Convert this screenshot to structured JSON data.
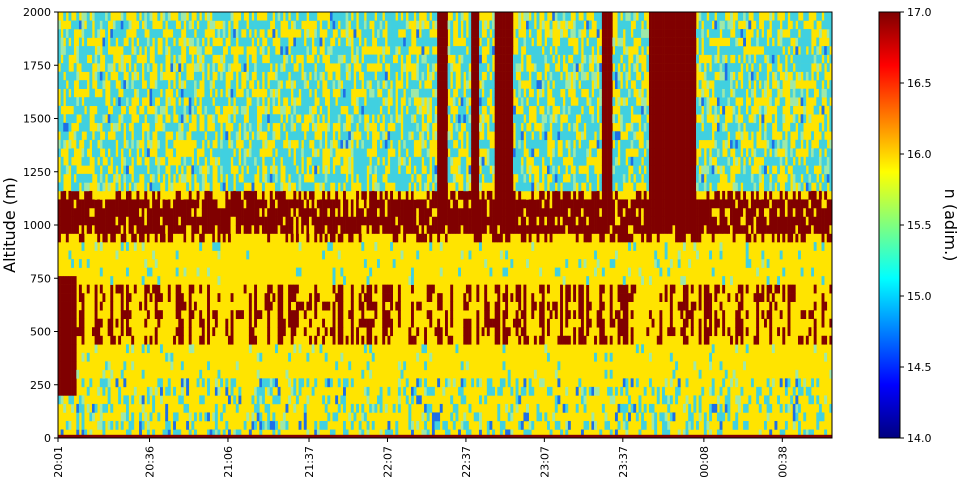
{
  "chart_data": {
    "type": "heatmap",
    "ylabel": "Altitude (m)",
    "colorbar_label": "n (adim.)",
    "x_tick_labels": [
      "20:01",
      "20:36",
      "21:06",
      "21:37",
      "22:07",
      "22:37",
      "23:07",
      "23:37",
      "00:08",
      "00:38"
    ],
    "x_tick_minutes": [
      1,
      36,
      66,
      97,
      127,
      157,
      187,
      217,
      248,
      278
    ],
    "x_range_minutes": [
      1,
      297
    ],
    "y_tick_labels": [
      "0",
      "250",
      "500",
      "750",
      "1000",
      "1250",
      "1500",
      "1750",
      "2000"
    ],
    "ylim": [
      0,
      2000
    ],
    "colorbar_tick_labels": [
      "14.0",
      "14.5",
      "15.0",
      "15.5",
      "16.0",
      "16.5",
      "17.0"
    ],
    "clim": [
      14.0,
      17.0
    ],
    "colormap": "jet",
    "grid": false,
    "colors": {
      "saturated_high": "#800000",
      "dominant_mid": "#ffe400",
      "low_noise": "#40d0e0",
      "colormap_stops": [
        "#00007f",
        "#0000ff",
        "#007fff",
        "#00ffff",
        "#7fff7f",
        "#ffff00",
        "#ff7f00",
        "#ff0000",
        "#7f0000"
      ]
    },
    "features": {
      "cloud_layer_altitude_m": [
        920,
        1120
      ],
      "lower_layer_altitude_m": [
        440,
        700
      ],
      "noisy_upper_region_altitude_m": [
        1150,
        2000
      ],
      "tall_plumes_minutes": [
        [
          146,
          150
        ],
        [
          159,
          162
        ],
        [
          168,
          175
        ],
        [
          209,
          213
        ],
        [
          227,
          245
        ]
      ],
      "surface_plume_minutes": [
        1,
        8
      ],
      "surface_plume_altitude_m": [
        180,
        720
      ]
    }
  }
}
